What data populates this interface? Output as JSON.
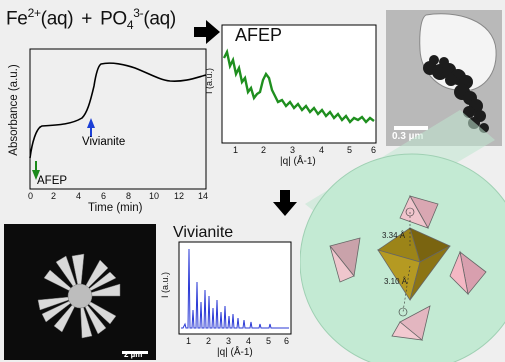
{
  "reaction": {
    "lhs1": "Fe",
    "lhs1_charge": "2+",
    "lhs1_state": "(aq)",
    "plus": "+",
    "lhs2": "PO",
    "lhs2_sub": "4",
    "lhs2_charge": "3-",
    "lhs2_state": "(aq)"
  },
  "absorbance_plot": {
    "ylabel": "Absorbance (a.u.)",
    "xlabel": "Time (min)",
    "xticks": [
      "0",
      "2",
      "4",
      "6",
      "8",
      "10",
      "12",
      "14"
    ],
    "markers": [
      {
        "label": "AFEP",
        "color": "#1a8a1a"
      },
      {
        "label": "Vivianite",
        "color": "#1b3fd6"
      }
    ]
  },
  "afep_plot": {
    "title": "AFEP",
    "ylabel": "I (a.u.)",
    "xlabel": "|q| (Å-1)",
    "xticks": [
      "1",
      "2",
      "3",
      "4",
      "5",
      "6"
    ],
    "line_color": "#1f8f1f"
  },
  "vivianite_plot": {
    "title": "Vivianite",
    "ylabel": "I (a.u.)",
    "xlabel": "|q| (Å-1)",
    "xticks": [
      "1",
      "2",
      "3",
      "4",
      "5",
      "6"
    ],
    "line_color": "#2b3ad6"
  },
  "tem_image": {
    "scale_bar": "0.3 µm"
  },
  "sem_image": {
    "scale_bar": "2 µm"
  },
  "structure": {
    "distance1": "3.34 Å",
    "distance2": "3.10 Å",
    "octahedron_color": "#a0891a",
    "tetrahedron_color": "#e6b4bd"
  },
  "arrows": [
    "right-arrow-icon",
    "down-arrow-icon"
  ]
}
